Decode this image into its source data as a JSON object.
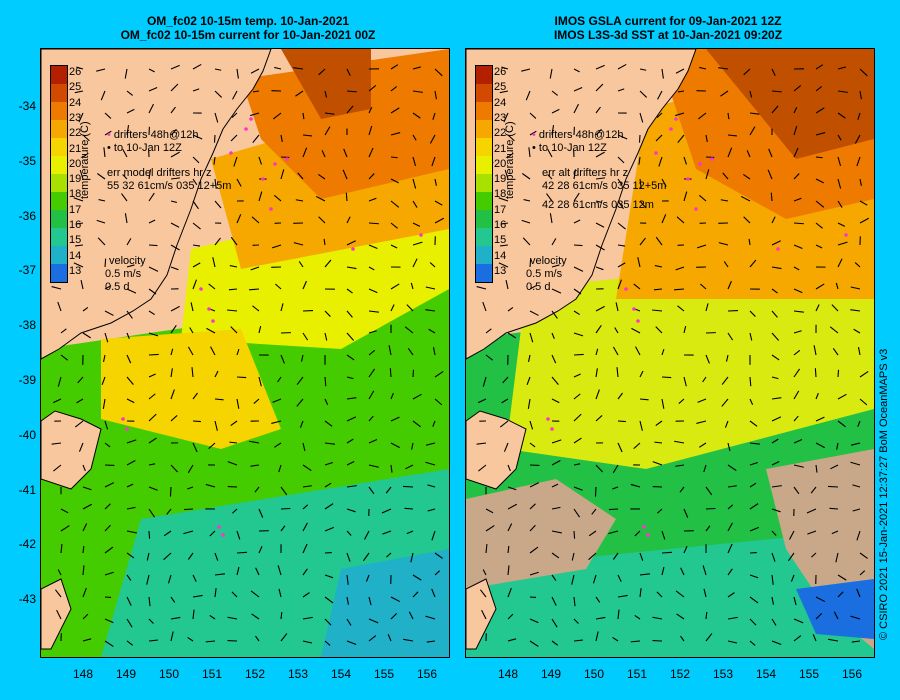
{
  "panels": [
    {
      "title_line1": "OM_fc02 10-15m temp. 10-Jan-2021",
      "title_line2": "OM_fc02 10-15m current for 10-Jan-2021 00Z",
      "legend_drifters": "drifters 48h@12h",
      "legend_to": "to 10-Jan 12Z",
      "legend_err_label": "err model drifters hr z",
      "legend_err_value1": "55 32 61cm/s 035 12+5m",
      "legend_err_value2": "",
      "drifter_label": "Drifters",
      "field": "model"
    },
    {
      "title_line1": "IMOS GSLA current for 09-Jan-2021 12Z",
      "title_line2": "IMOS L3S-3d SST at 10-Jan-2021 09:20Z",
      "legend_drifters": "drifters 48h@12h",
      "legend_to": "to 10-Jan 12Z",
      "legend_err_label": "err alt drifters hr z",
      "legend_err_value1": "42 28 61cm/s 035 12+5m",
      "legend_err_value2": "42 28 61cm/s 035 12m",
      "drifter_label": "Drifters",
      "field": "satellite"
    }
  ],
  "colorbar": {
    "title": "temperature (C)",
    "ticks": [
      "26",
      "25",
      "24",
      "23",
      "22",
      "21",
      "20",
      "19",
      "18",
      "17",
      "16",
      "15",
      "14",
      "13"
    ],
    "colors": [
      "#b32000",
      "#d24a00",
      "#ee7a00",
      "#f6a800",
      "#f6d400",
      "#e8f000",
      "#a8e000",
      "#44cc00",
      "#22c044",
      "#22c890",
      "#20b0c8",
      "#1a6ee0",
      "#1838b8",
      "#0c1a80"
    ]
  },
  "velocity_legend": {
    "title": "velocity",
    "speed": "0.5 m/s",
    "duration": "0.5 d"
  },
  "axes": {
    "lat_labels": [
      "-34",
      "-35",
      "-36",
      "-37",
      "-38",
      "-39",
      "-40",
      "-41",
      "-42",
      "-43"
    ],
    "lon_labels": [
      "148",
      "149",
      "150",
      "151",
      "152",
      "153",
      "154",
      "155",
      "156"
    ]
  },
  "credit": "© CSIRO 2021   15-Jan-2021 12:37:27 BoM OceanMAPS v3",
  "colors": {
    "land": "#f9c79e",
    "background": "#00ccff",
    "drifter": "#ff33cc",
    "cloud_mask": "#c8a888"
  }
}
